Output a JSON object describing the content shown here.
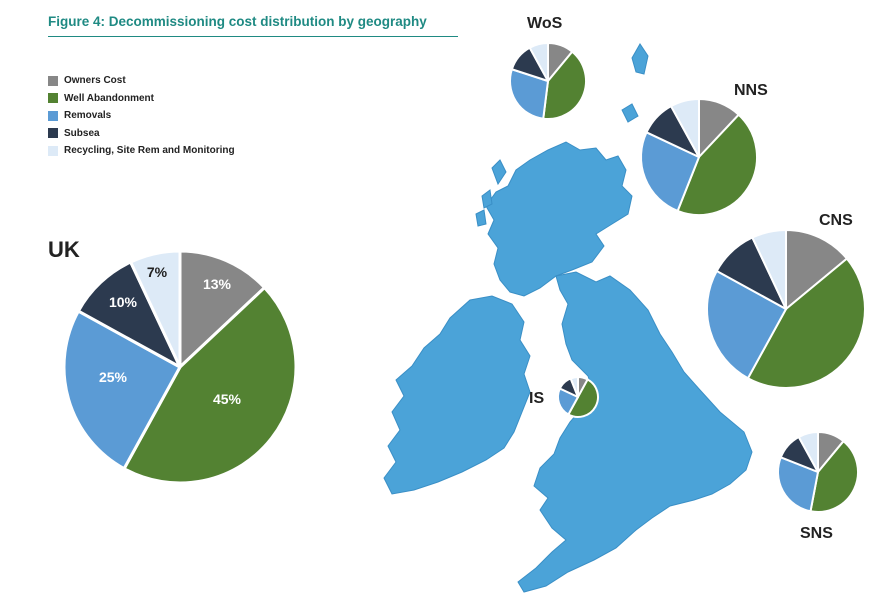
{
  "figure": {
    "title": "Figure 4: Decommissioning cost distribution by geography"
  },
  "colors": {
    "owners_cost": "#878787",
    "well_abandonment": "#538232",
    "removals": "#5b9bd5",
    "subsea": "#2c3a4f",
    "recycling": "#ddeaf7",
    "map_land": "#4ba3d8",
    "title_accent": "#1f8a83"
  },
  "legend": [
    {
      "label": "Owners Cost",
      "color": "#878787"
    },
    {
      "label": "Well Abandonment",
      "color": "#538232"
    },
    {
      "label": "Removals",
      "color": "#5b9bd5"
    },
    {
      "label": "Subsea",
      "color": "#2c3a4f"
    },
    {
      "label": "Recycling, Site Rem and Monitoring",
      "color": "#ddeaf7"
    }
  ],
  "chart_data": [
    {
      "type": "pie",
      "name": "UK",
      "categories": [
        "Owners Cost",
        "Well Abandonment",
        "Removals",
        "Subsea",
        "Recycling, Site Rem and Monitoring"
      ],
      "values": [
        13,
        45,
        25,
        10,
        7
      ],
      "data_labels": [
        "13%",
        "45%",
        "25%",
        "10%",
        "7%"
      ]
    },
    {
      "type": "pie",
      "name": "WoS",
      "categories": [
        "Owners Cost",
        "Well Abandonment",
        "Removals",
        "Subsea",
        "Recycling, Site Rem and Monitoring"
      ],
      "values": [
        11,
        41,
        28,
        12,
        8
      ]
    },
    {
      "type": "pie",
      "name": "NNS",
      "categories": [
        "Owners Cost",
        "Well Abandonment",
        "Removals",
        "Subsea",
        "Recycling, Site Rem and Monitoring"
      ],
      "values": [
        12,
        44,
        26,
        10,
        8
      ]
    },
    {
      "type": "pie",
      "name": "CNS",
      "categories": [
        "Owners Cost",
        "Well Abandonment",
        "Removals",
        "Subsea",
        "Recycling, Site Rem and Monitoring"
      ],
      "values": [
        14,
        44,
        25,
        10,
        7
      ]
    },
    {
      "type": "pie",
      "name": "IS",
      "categories": [
        "Owners Cost",
        "Well Abandonment",
        "Removals",
        "Subsea",
        "Recycling, Site Rem and Monitoring"
      ],
      "values": [
        8,
        50,
        24,
        12,
        6
      ]
    },
    {
      "type": "pie",
      "name": "SNS",
      "categories": [
        "Owners Cost",
        "Well Abandonment",
        "Removals",
        "Subsea",
        "Recycling, Site Rem and Monitoring"
      ],
      "values": [
        11,
        42,
        28,
        11,
        8
      ]
    }
  ]
}
